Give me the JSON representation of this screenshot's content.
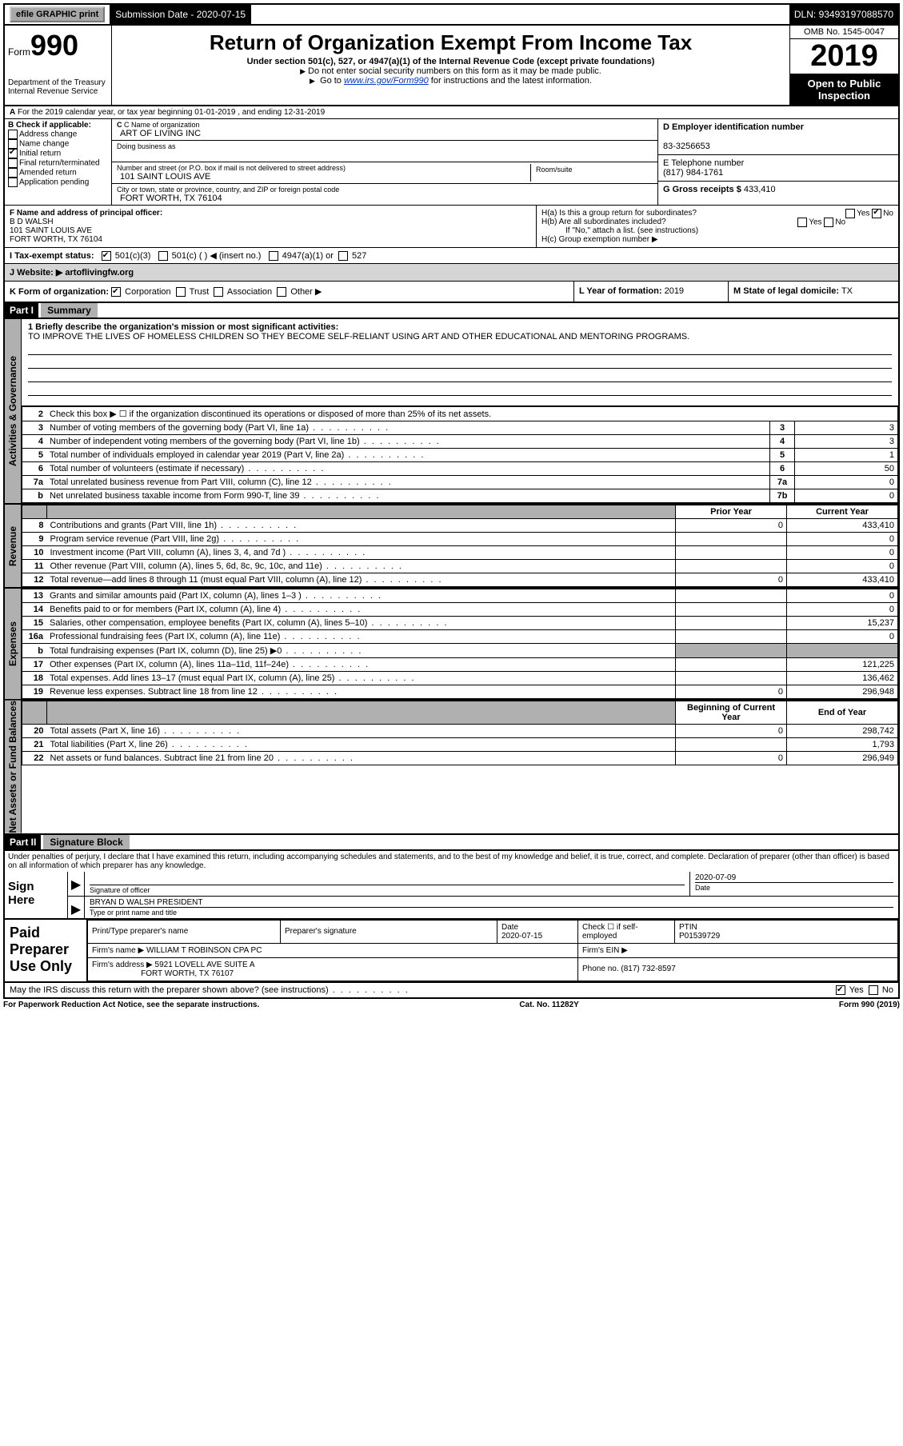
{
  "top_bar": {
    "efile": "efile GRAPHIC print",
    "submission_label": "Submission Date -",
    "submission_date": "2020-07-15",
    "dln_label": "DLN:",
    "dln": "93493197088570"
  },
  "header": {
    "form_label": "Form",
    "form_number": "990",
    "dept": "Department of the Treasury",
    "irs": "Internal Revenue Service",
    "title": "Return of Organization Exempt From Income Tax",
    "subtitle": "Under section 501(c), 527, or 4947(a)(1) of the Internal Revenue Code (except private foundations)",
    "note1": "Do not enter social security numbers on this form as it may be made public.",
    "note2_prefix": "Go to ",
    "note2_link": "www.irs.gov/Form990",
    "note2_suffix": " for instructions and the latest information.",
    "omb": "OMB No. 1545-0047",
    "year": "2019",
    "open": "Open to Public Inspection"
  },
  "row_a": "For the 2019 calendar year, or tax year beginning 01-01-2019   , and ending 12-31-2019",
  "section_b": {
    "label": "B Check if applicable:",
    "items": [
      "Address change",
      "Name change",
      "Initial return",
      "Final return/terminated",
      "Amended return",
      "Application pending"
    ],
    "checked_index": 2
  },
  "section_c": {
    "name_label": "C Name of organization",
    "name": "ART OF LIVING INC",
    "dba_label": "Doing business as",
    "dba": "",
    "addr_label": "Number and street (or P.O. box if mail is not delivered to street address)",
    "addr": "101 SAINT LOUIS AVE",
    "room_label": "Room/suite",
    "city_label": "City or town, state or province, country, and ZIP or foreign postal code",
    "city": "FORT WORTH, TX  76104"
  },
  "section_d": {
    "ein_label": "D Employer identification number",
    "ein": "83-3256653",
    "phone_label": "E Telephone number",
    "phone": "(817) 984-1761",
    "gross_label": "G Gross receipts $",
    "gross": "433,410"
  },
  "section_f": {
    "label": "F  Name and address of principal officer:",
    "name": "B D WALSH",
    "addr1": "101 SAINT LOUIS AVE",
    "addr2": "FORT WORTH, TX  76104"
  },
  "section_h": {
    "ha": "H(a)  Is this a group return for subordinates?",
    "hb": "H(b)  Are all subordinates included?",
    "hb_note": "If \"No,\" attach a list. (see instructions)",
    "hc": "H(c)  Group exemption number ▶"
  },
  "row_i": {
    "label": "I  Tax-exempt status:",
    "opt1": "501(c)(3)",
    "opt2": "501(c) (  ) ◀ (insert no.)",
    "opt3": "4947(a)(1) or",
    "opt4": "527"
  },
  "row_j": {
    "label": "J  Website: ▶",
    "value": "artoflivingfw.org"
  },
  "row_k": "K Form of organization:",
  "row_k_opts": [
    "Corporation",
    "Trust",
    "Association",
    "Other ▶"
  ],
  "row_l_label": "L Year of formation:",
  "row_l": "2019",
  "row_m_label": "M State of legal domicile:",
  "row_m": "TX",
  "part1": {
    "header": "Part I",
    "title": "Summary",
    "side1": "Activities & Governance",
    "side2": "Revenue",
    "side3": "Expenses",
    "side4": "Net Assets or Fund Balances",
    "mission_label": "1  Briefly describe the organization's mission or most significant activities:",
    "mission": "TO IMPROVE THE LIVES OF HOMELESS CHILDREN SO THEY BECOME SELF-RELIANT USING ART AND OTHER EDUCATIONAL AND MENTORING PROGRAMS.",
    "line2": "Check this box ▶ ☐ if the organization discontinued its operations or disposed of more than 25% of its net assets.",
    "rows_gov": [
      {
        "n": "3",
        "d": "Number of voting members of the governing body (Part VI, line 1a)",
        "b": "3",
        "v": "3"
      },
      {
        "n": "4",
        "d": "Number of independent voting members of the governing body (Part VI, line 1b)",
        "b": "4",
        "v": "3"
      },
      {
        "n": "5",
        "d": "Total number of individuals employed in calendar year 2019 (Part V, line 2a)",
        "b": "5",
        "v": "1"
      },
      {
        "n": "6",
        "d": "Total number of volunteers (estimate if necessary)",
        "b": "6",
        "v": "50"
      },
      {
        "n": "7a",
        "d": "Total unrelated business revenue from Part VIII, column (C), line 12",
        "b": "7a",
        "v": "0"
      },
      {
        "n": "b",
        "d": "Net unrelated business taxable income from Form 990-T, line 39",
        "b": "7b",
        "v": "0"
      }
    ],
    "py_label": "Prior Year",
    "cy_label": "Current Year",
    "rows_rev": [
      {
        "n": "8",
        "d": "Contributions and grants (Part VIII, line 1h)",
        "py": "0",
        "cy": "433,410"
      },
      {
        "n": "9",
        "d": "Program service revenue (Part VIII, line 2g)",
        "py": "",
        "cy": "0"
      },
      {
        "n": "10",
        "d": "Investment income (Part VIII, column (A), lines 3, 4, and 7d )",
        "py": "",
        "cy": "0"
      },
      {
        "n": "11",
        "d": "Other revenue (Part VIII, column (A), lines 5, 6d, 8c, 9c, 10c, and 11e)",
        "py": "",
        "cy": "0"
      },
      {
        "n": "12",
        "d": "Total revenue—add lines 8 through 11 (must equal Part VIII, column (A), line 12)",
        "py": "0",
        "cy": "433,410"
      }
    ],
    "rows_exp": [
      {
        "n": "13",
        "d": "Grants and similar amounts paid (Part IX, column (A), lines 1–3 )",
        "py": "",
        "cy": "0"
      },
      {
        "n": "14",
        "d": "Benefits paid to or for members (Part IX, column (A), line 4)",
        "py": "",
        "cy": "0"
      },
      {
        "n": "15",
        "d": "Salaries, other compensation, employee benefits (Part IX, column (A), lines 5–10)",
        "py": "",
        "cy": "15,237"
      },
      {
        "n": "16a",
        "d": "Professional fundraising fees (Part IX, column (A), line 11e)",
        "py": "",
        "cy": "0"
      },
      {
        "n": "b",
        "d": "Total fundraising expenses (Part IX, column (D), line 25) ▶0",
        "py": "SHADE",
        "cy": "SHADE"
      },
      {
        "n": "17",
        "d": "Other expenses (Part IX, column (A), lines 11a–11d, 11f–24e)",
        "py": "",
        "cy": "121,225"
      },
      {
        "n": "18",
        "d": "Total expenses. Add lines 13–17 (must equal Part IX, column (A), line 25)",
        "py": "",
        "cy": "136,462"
      },
      {
        "n": "19",
        "d": "Revenue less expenses. Subtract line 18 from line 12",
        "py": "0",
        "cy": "296,948"
      }
    ],
    "bcy_label": "Beginning of Current Year",
    "eoy_label": "End of Year",
    "rows_net": [
      {
        "n": "20",
        "d": "Total assets (Part X, line 16)",
        "py": "0",
        "cy": "298,742"
      },
      {
        "n": "21",
        "d": "Total liabilities (Part X, line 26)",
        "py": "",
        "cy": "1,793"
      },
      {
        "n": "22",
        "d": "Net assets or fund balances. Subtract line 21 from line 20",
        "py": "0",
        "cy": "296,949"
      }
    ]
  },
  "part2": {
    "header": "Part II",
    "title": "Signature Block",
    "declaration": "Under penalties of perjury, I declare that I have examined this return, including accompanying schedules and statements, and to the best of my knowledge and belief, it is true, correct, and complete. Declaration of preparer (other than officer) is based on all information of which preparer has any knowledge.",
    "sign_here": "Sign Here",
    "sig_officer": "Signature of officer",
    "sig_date": "2020-07-09",
    "date_label": "Date",
    "officer_name": "BRYAN D WALSH  PRESIDENT",
    "type_label": "Type or print name and title",
    "paid": "Paid Preparer Use Only",
    "prep_name_label": "Print/Type preparer's name",
    "prep_sig_label": "Preparer's signature",
    "prep_date": "2020-07-15",
    "check_self": "Check ☐ if self-employed",
    "ptin_label": "PTIN",
    "ptin": "P01539729",
    "firm_name_label": "Firm's name    ▶",
    "firm_name": "WILLIAM T ROBINSON CPA PC",
    "firm_ein_label": "Firm's EIN ▶",
    "firm_addr_label": "Firm's address ▶",
    "firm_addr1": "5921 LOVELL AVE SUITE A",
    "firm_addr2": "FORT WORTH, TX  76107",
    "firm_phone_label": "Phone no.",
    "firm_phone": "(817) 732-8597",
    "may_discuss": "May the IRS discuss this return with the preparer shown above? (see instructions)"
  },
  "footer": {
    "left": "For Paperwork Reduction Act Notice, see the separate instructions.",
    "mid": "Cat. No. 11282Y",
    "right": "Form 990 (2019)"
  }
}
